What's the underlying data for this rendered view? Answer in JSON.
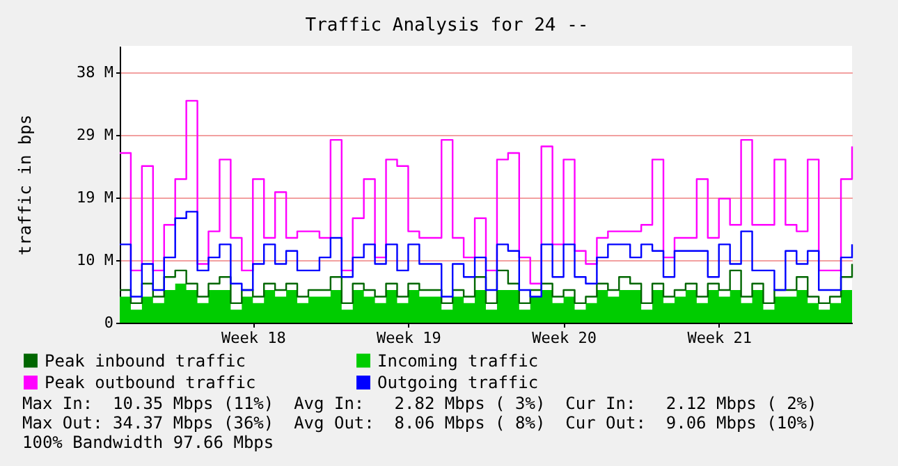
{
  "chart_data": {
    "type": "step",
    "title": "Traffic Analysis for 24 --",
    "ylabel": "traffic in bps",
    "categories": [
      null,
      null,
      null,
      null,
      null,
      null,
      null,
      null,
      null,
      null,
      null,
      null,
      "Week 18",
      null,
      null,
      null,
      null,
      null,
      null,
      null,
      null,
      null,
      null,
      null,
      null,
      null,
      "Week 19",
      null,
      null,
      null,
      null,
      null,
      null,
      null,
      null,
      null,
      null,
      null,
      null,
      null,
      "Week 20",
      null,
      null,
      null,
      null,
      null,
      null,
      null,
      null,
      null,
      null,
      null,
      null,
      null,
      "Week 21",
      null,
      null,
      null,
      null,
      null,
      null,
      null,
      null,
      null,
      null,
      null,
      null
    ],
    "series": [
      {
        "name": "Peak inbound traffic",
        "color": "#006600",
        "values": [
          5,
          3,
          6,
          4,
          7,
          8,
          6,
          4,
          6,
          7,
          3,
          5,
          4,
          6,
          5,
          6,
          4,
          5,
          5,
          7,
          3,
          6,
          5,
          4,
          6,
          4,
          6,
          5,
          5,
          3,
          5,
          4,
          7,
          3,
          8,
          6,
          3,
          5,
          6,
          4,
          5,
          3,
          4,
          6,
          5,
          7,
          6,
          3,
          6,
          4,
          5,
          6,
          4,
          6,
          5,
          8,
          4,
          6,
          3,
          5,
          5,
          7,
          4,
          3,
          4,
          7,
          9
        ]
      },
      {
        "name": "Incoming traffic",
        "color": "#00cc00",
        "type": "area",
        "values": [
          4,
          2,
          4,
          3,
          5,
          6,
          5,
          3,
          5,
          5,
          2,
          4,
          3,
          5,
          4,
          5,
          3,
          4,
          4,
          5,
          2,
          5,
          4,
          3,
          5,
          3,
          5,
          4,
          4,
          2,
          4,
          3,
          5,
          2,
          5,
          5,
          2,
          4,
          5,
          3,
          4,
          2,
          3,
          5,
          4,
          5,
          5,
          2,
          5,
          3,
          4,
          5,
          3,
          5,
          4,
          5,
          3,
          5,
          2,
          4,
          4,
          5,
          3,
          2,
          3,
          5,
          2
        ]
      },
      {
        "name": "Peak outbound traffic",
        "color": "#ff00ff",
        "values": [
          26,
          8,
          24,
          8,
          15,
          22,
          34,
          9,
          14,
          25,
          13,
          8,
          22,
          13,
          20,
          13,
          14,
          14,
          13,
          28,
          8,
          16,
          22,
          10,
          25,
          24,
          14,
          13,
          13,
          28,
          13,
          10,
          16,
          8,
          25,
          26,
          10,
          6,
          27,
          12,
          25,
          11,
          9,
          13,
          14,
          14,
          14,
          15,
          25,
          10,
          13,
          13,
          22,
          13,
          19,
          15,
          28,
          15,
          15,
          25,
          15,
          14,
          25,
          8,
          8,
          22,
          27
        ]
      },
      {
        "name": "Outgoing traffic",
        "color": "#0000ff",
        "values": [
          12,
          4,
          9,
          5,
          10,
          16,
          17,
          8,
          10,
          12,
          6,
          5,
          9,
          12,
          9,
          11,
          8,
          8,
          10,
          13,
          7,
          10,
          12,
          9,
          12,
          8,
          12,
          9,
          9,
          4,
          9,
          7,
          10,
          5,
          12,
          11,
          5,
          4,
          12,
          7,
          12,
          7,
          6,
          10,
          12,
          12,
          10,
          12,
          11,
          7,
          11,
          11,
          11,
          7,
          12,
          9,
          14,
          8,
          8,
          5,
          11,
          9,
          11,
          5,
          5,
          10,
          12
        ]
      }
    ],
    "ylim": [
      0,
      42.4
    ],
    "yticks": [
      0,
      {
        "value": 9.6,
        "label": "10 M"
      },
      {
        "value": 19.2,
        "label": "19 M"
      },
      {
        "value": 28.8,
        "label": "29 M"
      },
      {
        "value": 38.4,
        "label": "38 M"
      }
    ],
    "grid": "y",
    "legend": "bottom",
    "annotations": [
      "Max In:  10.35 Mbps (11%)  Avg In:   2.82 Mbps ( 3%)  Cur In:   2.12 Mbps ( 2%)",
      "Max Out: 34.37 Mbps (36%)  Avg Out:  8.06 Mbps ( 8%)  Cur Out:  9.06 Mbps (10%)",
      "100% Bandwidth 97.66 Mbps"
    ]
  }
}
